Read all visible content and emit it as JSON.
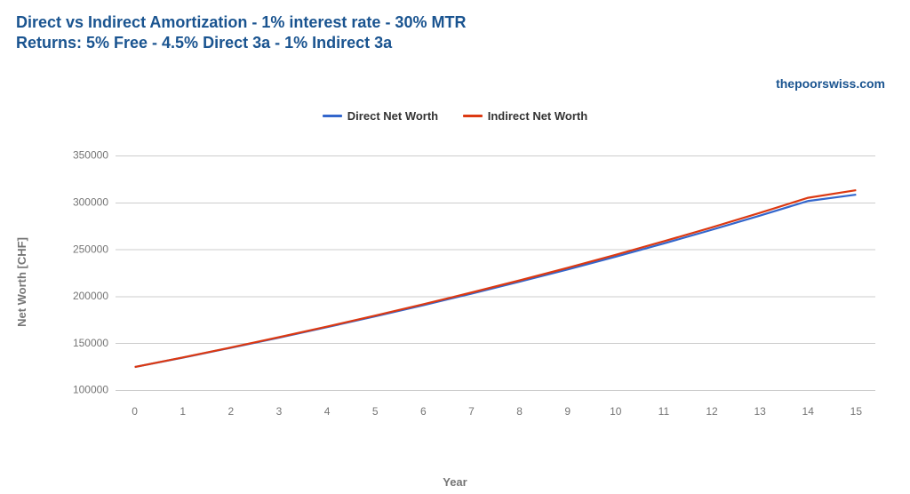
{
  "title_line1": "Direct vs Indirect Amortization - 1% interest rate - 30% MTR",
  "title_line2": "Returns: 5% Free - 4.5% Direct 3a - 1% Indirect 3a",
  "title_color": "#1a5490",
  "attribution": "thepoorswiss.com",
  "attribution_color": "#1a5490",
  "legend": {
    "items": [
      {
        "label": "Direct Net Worth",
        "color": "#3366cc"
      },
      {
        "label": "Indirect Net Worth",
        "color": "#dc3912"
      }
    ]
  },
  "chart": {
    "type": "line",
    "background_color": "#ffffff",
    "grid_color": "#cccccc",
    "tick_label_color": "#757575",
    "axis_title_color": "#757575",
    "tick_fontsize": 12,
    "axis_title_fontsize": 13,
    "line_width": 2.2,
    "x_axis": {
      "title": "Year",
      "min": -0.4,
      "max": 15.4,
      "ticks": [
        0,
        1,
        2,
        3,
        4,
        5,
        6,
        7,
        8,
        9,
        10,
        11,
        12,
        13,
        14,
        15
      ]
    },
    "y_axis": {
      "title": "Net Worth [CHF]",
      "min": 90000,
      "max": 360000,
      "ticks": [
        100000,
        150000,
        200000,
        250000,
        300000,
        350000
      ]
    },
    "series": [
      {
        "name": "Direct Net Worth",
        "color": "#3366cc",
        "x": [
          0,
          1,
          2,
          3,
          4,
          5,
          6,
          7,
          8,
          9,
          10,
          11,
          12,
          13,
          14,
          15
        ],
        "y": [
          125000,
          135000,
          145500,
          156300,
          167500,
          179000,
          190900,
          203200,
          215900,
          229000,
          242600,
          256700,
          271300,
          286400,
          302000,
          308800
        ]
      },
      {
        "name": "Indirect Net Worth",
        "color": "#dc3912",
        "x": [
          0,
          1,
          2,
          3,
          4,
          5,
          6,
          7,
          8,
          9,
          10,
          11,
          12,
          13,
          14,
          15
        ],
        "y": [
          125000,
          135200,
          145800,
          156800,
          168100,
          179800,
          191900,
          204400,
          217300,
          230700,
          244600,
          259000,
          273900,
          289400,
          305400,
          313500
        ]
      }
    ]
  }
}
